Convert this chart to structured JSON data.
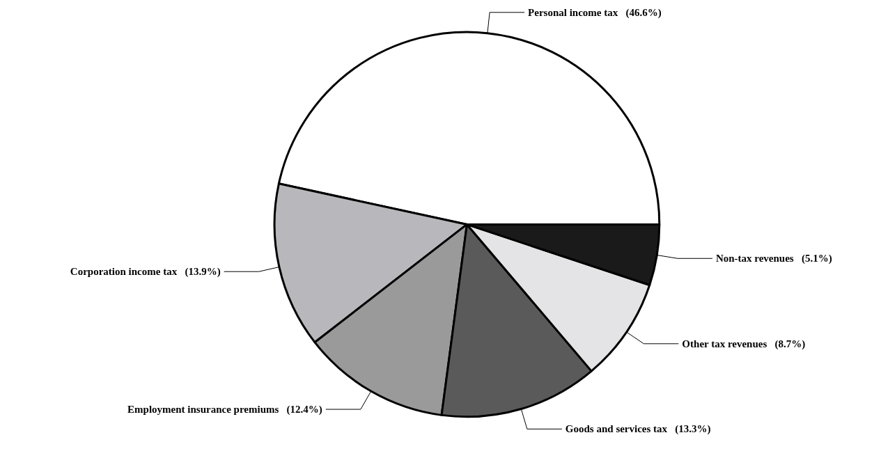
{
  "chart_data": {
    "type": "pie",
    "categories": [
      "Personal income tax",
      "Corporation income tax",
      "Employment insurance premiums",
      "Goods and services tax",
      "Other tax revenues",
      "Non-tax revenues"
    ],
    "values": [
      46.6,
      13.9,
      12.4,
      13.3,
      8.7,
      5.1
    ],
    "value_labels": [
      "(46.6%)",
      "(13.9%)",
      "(12.4%)",
      "(13.3%)",
      "(8.7%)",
      "(5.1%)"
    ],
    "colors": [
      "#ffffff",
      "#b8b8bc",
      "#9a9a9a",
      "#5a5a5a",
      "#e4e4e6",
      "#1a1a1a"
    ],
    "legend": false
  }
}
